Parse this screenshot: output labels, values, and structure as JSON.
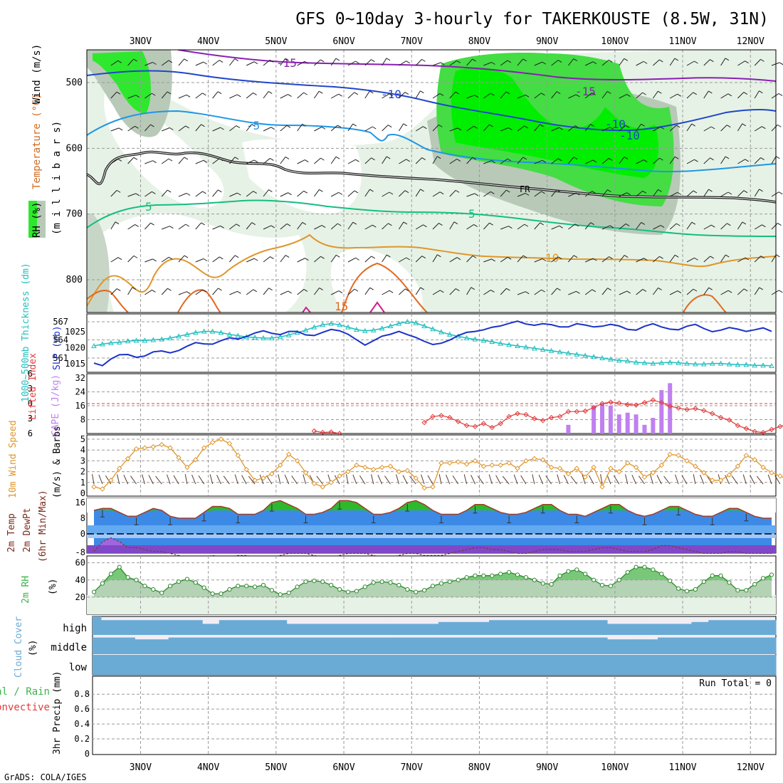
{
  "title": "GFS 0~10day 3-hourly for TAKERKOUSTE (8.5W, 31N)",
  "credit": "GrADS: COLA/IGES",
  "colors": {
    "temperature_label": "#d2691e",
    "rh_label": "#3cb44b",
    "wind_label": "#333333",
    "thickness": "#1fbfbf",
    "slp": "#1a32c8",
    "cape": "#c080f0",
    "lifted_index": "#e03c3c",
    "wind10": "#e0962a",
    "green_rh": "#3ec43e",
    "cloud": "#6aabd6"
  },
  "panels": {
    "upper": {
      "ylabel_units": "(m i l l i b a r s)",
      "label_wind": "Wind (m/s)",
      "label_temperature": "Temperature (°C)",
      "label_rh": "RH (%)",
      "freezing_label": "FR",
      "contour_labels": [
        "-15",
        "-15",
        "-10",
        "-10",
        "-10",
        "-5",
        "5",
        "5",
        "10",
        "15"
      ]
    },
    "pressure": {
      "label_thickness": "1000~500mb Thickness (dm)",
      "label_slp": "SLP (mb)"
    },
    "instability": {
      "label_li": "Lifted Index",
      "label_cape": "CAPE (J/kg)"
    },
    "wind10": {
      "label": "10m Wind Speed",
      "label2": "(m/s) & Barbs"
    },
    "temp2m": {
      "label": "2m Temp",
      "label2": "2m DewPt",
      "label3": "(6hr Min/Max)"
    },
    "rh2m": {
      "label": "2m RH",
      "units": "(%)"
    },
    "clouds": {
      "label": "Cloud Cover",
      "units": "(%)",
      "levels": [
        "high",
        "middle",
        "low"
      ]
    },
    "precip": {
      "label_total": "Total / Rain",
      "label_conv": "Convective",
      "label_3hr": "3hr Precip (mm)",
      "run_total": "Run Total = 0"
    }
  },
  "chart_data": {
    "type": "meteogram",
    "x_dates": [
      "3NOV",
      "4NOV",
      "5NOV",
      "6NOV",
      "7NOV",
      "8NOV",
      "9NOV",
      "10NOV",
      "11NOV",
      "12NOV"
    ],
    "upper_air": {
      "yaxis_mb": [
        500,
        600,
        700,
        800
      ],
      "temperature_contours_C": [
        -15,
        -10,
        -5,
        0,
        5,
        10,
        15
      ]
    },
    "thickness_dm": {
      "axis": [
        561,
        564,
        567
      ],
      "values": [
        563.0,
        563.3,
        563.5,
        563.6,
        563.8,
        563.9,
        563.9,
        564.0,
        564.1,
        564.3,
        564.6,
        564.9,
        565.2,
        565.4,
        565.4,
        565.2,
        564.9,
        564.7,
        564.5,
        564.4,
        564.3,
        564.3,
        564.5,
        564.8,
        565.2,
        565.6,
        566.1,
        566.5,
        566.7,
        566.5,
        566.1,
        565.7,
        565.5,
        565.6,
        565.9,
        566.3,
        566.7,
        567.0,
        566.8,
        566.3,
        565.8,
        565.3,
        564.9,
        564.6,
        564.3,
        564.1,
        563.9,
        563.7,
        563.4,
        563.2,
        563.0,
        562.8,
        562.6,
        562.4,
        562.2,
        562.0,
        561.8,
        561.6,
        561.4,
        561.2,
        561.0,
        560.8,
        560.6,
        560.5,
        560.3,
        560.2,
        560.1,
        560.2,
        560.3,
        560.2,
        560.1,
        560.0,
        560.0,
        560.1,
        560.1,
        560.0,
        559.9,
        559.9,
        559.8,
        559.8,
        559.7
      ]
    },
    "slp_mb": {
      "axis": [
        1015,
        1020,
        1025
      ],
      "values": [
        1015.2,
        1014.4,
        1016.5,
        1017.8,
        1017.9,
        1017.0,
        1017.4,
        1018.7,
        1019.0,
        1018.4,
        1019.1,
        1020.5,
        1021.6,
        1021.2,
        1021.1,
        1022.2,
        1023.1,
        1022.7,
        1023.5,
        1024.6,
        1025.3,
        1024.5,
        1024.1,
        1025.1,
        1025.1,
        1024.0,
        1023.8,
        1024.8,
        1025.7,
        1025.3,
        1024.2,
        1022.5,
        1020.8,
        1022.2,
        1023.6,
        1024.2,
        1025.1,
        1024.1,
        1023.2,
        1022.0,
        1021.0,
        1021.4,
        1022.4,
        1023.8,
        1024.8,
        1025.1,
        1025.6,
        1026.4,
        1026.8,
        1027.6,
        1028.3,
        1027.4,
        1027.0,
        1027.5,
        1027.2,
        1026.5,
        1026.5,
        1027.5,
        1027.1,
        1026.5,
        1026.7,
        1027.3,
        1026.8,
        1025.7,
        1025.5,
        1026.7,
        1027.5,
        1026.5,
        1025.8,
        1025.6,
        1026.7,
        1027.3,
        1026.0,
        1025.0,
        1025.5,
        1026.3,
        1025.8,
        1025.1,
        1025.6,
        1026.2,
        1025.1
      ]
    },
    "cape_Jkg": {
      "axis": [
        8,
        16,
        24,
        32
      ],
      "bars": [
        {
          "i": 56,
          "v": 5
        },
        {
          "i": 59,
          "v": 16
        },
        {
          "i": 60,
          "v": 17
        },
        {
          "i": 61,
          "v": 16
        },
        {
          "i": 62,
          "v": 11
        },
        {
          "i": 63,
          "v": 12
        },
        {
          "i": 64,
          "v": 11
        },
        {
          "i": 65,
          "v": 5
        },
        {
          "i": 66,
          "v": 9
        },
        {
          "i": 67,
          "v": 25
        },
        {
          "i": 68,
          "v": 29
        }
      ]
    },
    "lifted_index": {
      "axis": [
        -6,
        -3,
        0,
        3,
        6
      ],
      "start_index": 26,
      "values": [
        5.5,
        5.8,
        5.7,
        6.0,
        null,
        null,
        null,
        null,
        null,
        null,
        null,
        null,
        null,
        3.8,
        2.6,
        2.4,
        2.8,
        3.6,
        4.4,
        4.6,
        4.0,
        4.8,
        4.0,
        2.6,
        2.0,
        2.2,
        3.0,
        3.4,
        2.8,
        2.6,
        1.6,
        1.6,
        1.5,
        0.8,
        0.0,
        -0.3,
        -0.1,
        0.2,
        0.3,
        -0.2,
        -0.7,
        -0.2,
        0.5,
        0.9,
        1.2,
        1.0,
        1.4,
        2.0,
        2.8,
        3.3,
        4.4,
        5.0,
        5.6,
        5.8,
        5.2,
        4.6,
        4.0,
        3.6,
        4.2,
        4.8,
        5.2,
        5.5,
        5.6,
        5.7,
        5.8,
        5.8
      ]
    },
    "wind10_ms": {
      "axis": [
        0,
        1,
        2,
        3,
        4,
        5
      ],
      "values": [
        0.6,
        0.4,
        1.2,
        2.3,
        3.2,
        4.1,
        4.2,
        4.3,
        4.5,
        4.2,
        3.3,
        2.4,
        3.1,
        4.2,
        4.7,
        5.0,
        4.6,
        3.5,
        2.2,
        1.2,
        1.4,
        1.8,
        2.6,
        3.6,
        3.0,
        1.9,
        0.9,
        0.6,
        1.0,
        1.6,
        2.0,
        2.6,
        2.4,
        2.2,
        2.4,
        2.5,
        2.0,
        2.1,
        1.4,
        0.5,
        0.6,
        2.8,
        2.8,
        2.9,
        2.7,
        3.0,
        2.5,
        2.6,
        2.6,
        2.8,
        2.3,
        3.0,
        3.2,
        3.1,
        2.4,
        2.3,
        1.8,
        2.3,
        1.5,
        2.4,
        0.6,
        2.3,
        2.0,
        2.8,
        2.4,
        1.5,
        1.9,
        2.6,
        3.6,
        3.5,
        3.0,
        2.5,
        1.9,
        1.2,
        1.2,
        1.7,
        2.5,
        3.5,
        3.1,
        2.4,
        1.9,
        1.6,
        1.2
      ]
    },
    "temp2m_C": {
      "axis": [
        0,
        8,
        16
      ],
      "values": [
        12,
        13,
        13,
        11,
        9,
        9,
        11,
        13,
        12,
        9,
        8,
        8,
        8,
        11,
        14,
        14,
        13,
        10,
        10,
        10,
        12,
        16,
        17,
        15,
        13,
        10,
        10,
        11,
        13,
        17,
        17,
        16,
        13,
        10,
        10,
        11,
        13,
        16,
        17,
        15,
        12,
        10,
        10,
        10,
        12,
        15,
        15,
        13,
        11,
        10,
        10,
        11,
        13,
        15,
        15,
        12,
        10,
        10,
        9,
        11,
        13,
        15,
        15,
        12,
        10,
        9,
        10,
        12,
        14,
        14,
        12,
        10,
        9,
        9,
        11,
        13,
        13,
        11,
        9,
        8,
        8
      ]
    },
    "dewpt2m_C": {
      "values": [
        -9,
        -4,
        -2,
        -4,
        -7,
        -7,
        -8,
        -9,
        -9,
        -10,
        -11,
        -12,
        -12,
        -12,
        -11,
        -12,
        -12,
        -11,
        -11,
        -12,
        -12,
        -12,
        -11,
        -10,
        -10,
        -10,
        -11,
        -12,
        -12,
        -11,
        -10,
        -10,
        -10,
        -11,
        -12,
        -12,
        -11,
        -10,
        -10,
        -11,
        -11,
        -11,
        -10,
        -9,
        -8,
        -7,
        -7,
        -8,
        -8,
        -9,
        -10,
        -10,
        -9,
        -8,
        -8,
        -8,
        -9,
        -9,
        -9,
        -8,
        -7,
        -7,
        -8,
        -9,
        -9,
        -9,
        -8,
        -6,
        -6,
        -7,
        -8,
        -9,
        -10,
        -10,
        -10,
        -9,
        -9,
        -10,
        -10,
        -10,
        -10
      ]
    },
    "rh2m_pct": {
      "axis": [
        20,
        40,
        60
      ],
      "values": [
        26,
        36,
        47,
        55,
        43,
        40,
        33,
        29,
        25,
        33,
        38,
        41,
        37,
        31,
        24,
        24,
        29,
        33,
        33,
        32,
        34,
        28,
        23,
        25,
        32,
        38,
        39,
        38,
        34,
        29,
        26,
        27,
        32,
        37,
        38,
        37,
        34,
        29,
        26,
        28,
        33,
        36,
        38,
        40,
        43,
        45,
        45,
        45,
        47,
        49,
        46,
        43,
        40,
        36,
        35,
        45,
        50,
        52,
        47,
        40,
        34,
        33,
        40,
        49,
        55,
        55,
        52,
        47,
        39,
        30,
        27,
        29,
        38,
        45,
        45,
        37,
        28,
        28,
        35,
        42,
        46
      ]
    },
    "cloud_cover": {
      "high": [
        0,
        20,
        20,
        20,
        20,
        20,
        20,
        20,
        20,
        20,
        20,
        20,
        20,
        40,
        40,
        20,
        20,
        20,
        20,
        20,
        20,
        20,
        20,
        40,
        40,
        40,
        40,
        40,
        40,
        40,
        40,
        40,
        40,
        40,
        40,
        40,
        40,
        40,
        40,
        40,
        40,
        30,
        30,
        30,
        30,
        30,
        30,
        20,
        20,
        20,
        20,
        20,
        20,
        20,
        20,
        20,
        20,
        20,
        20,
        20,
        20,
        40,
        40,
        40,
        40,
        40,
        40,
        40,
        40,
        40,
        40,
        30,
        30,
        20,
        20,
        20,
        20,
        20,
        20,
        20,
        20
      ],
      "middle": [
        10,
        10,
        10,
        10,
        10,
        20,
        20,
        20,
        20,
        10,
        10,
        10,
        10,
        10,
        10,
        10,
        10,
        10,
        10,
        10,
        10,
        10,
        10,
        10,
        10,
        10,
        10,
        10,
        10,
        10,
        10,
        10,
        10,
        10,
        10,
        10,
        10,
        10,
        10,
        10,
        10,
        10,
        10,
        10,
        10,
        10,
        10,
        10,
        10,
        10,
        10,
        10,
        10,
        10,
        10,
        10,
        10,
        10,
        10,
        10,
        10,
        20,
        20,
        20,
        20,
        20,
        20,
        10,
        10,
        10,
        10,
        10,
        10,
        10,
        10,
        10,
        10,
        10,
        10,
        10,
        10
      ],
      "low": [
        0,
        0,
        0,
        0,
        0,
        0,
        0,
        0,
        0,
        0,
        0,
        0,
        0,
        0,
        0,
        0,
        0,
        0,
        0,
        0,
        0,
        0,
        0,
        0,
        0,
        0,
        0,
        0,
        0,
        0,
        0,
        0,
        0,
        0,
        0,
        0,
        0,
        0,
        0,
        0,
        0,
        0,
        0,
        0,
        0,
        0,
        0,
        0,
        0,
        0,
        0,
        0,
        0,
        0,
        0,
        0,
        0,
        0,
        0,
        0,
        0,
        0,
        0,
        0,
        0,
        0,
        0,
        0,
        0,
        0,
        0,
        0,
        0,
        0,
        0,
        0,
        0,
        0,
        0,
        0,
        0
      ]
    },
    "precip_3hr_mm": {
      "axis": [
        0,
        0.2,
        0.4,
        0.6,
        0.8
      ],
      "values": []
    }
  }
}
